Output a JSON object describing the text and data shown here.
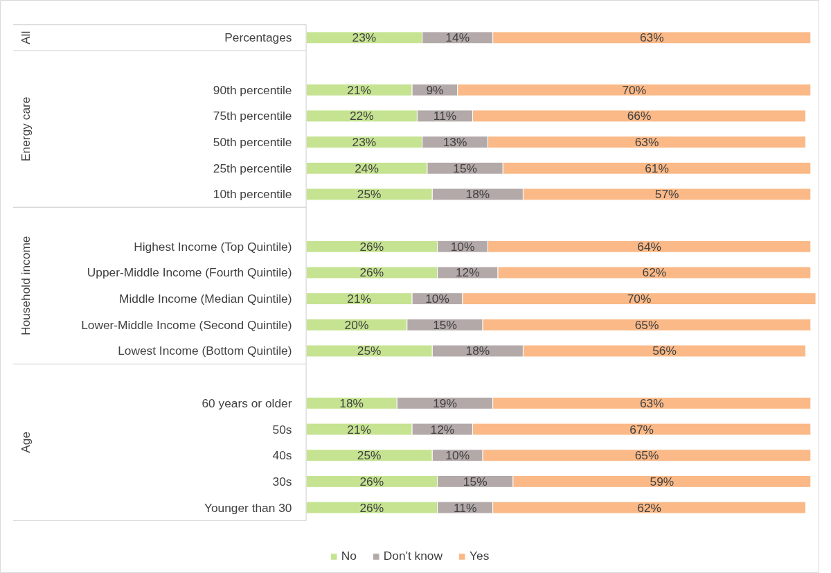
{
  "chart_data": {
    "type": "bar",
    "orientation": "horizontal",
    "stacked": true,
    "legend": "bottom",
    "categories": [
      "Percentages",
      null,
      "90th percentile",
      "75th percentile",
      "50th percentile",
      "25th percentile",
      "10th percentile",
      null,
      "Highest Income (Top Quintile)",
      "Upper-Middle Income (Fourth Quintile)",
      "Middle Income (Median Quintile)",
      "Lower-Middle Income (Second Quintile)",
      "Lowest Income (Bottom Quintile)",
      null,
      "60 years or older",
      "50s",
      "40s",
      "30s",
      "Younger than 30"
    ],
    "annotations": [
      "All",
      "Energy care",
      "Household income",
      "Age"
    ],
    "series": [
      {
        "name": "No",
        "color": "#c5e391",
        "values": [
          23,
          null,
          21,
          22,
          23,
          24,
          25,
          null,
          26,
          26,
          21,
          20,
          25,
          null,
          18,
          21,
          25,
          26,
          26
        ],
        "value_labels": [
          "23%",
          null,
          "21%",
          "22%",
          "23%",
          "24%",
          "25%",
          null,
          "26%",
          "26%",
          "21%",
          "20%",
          "25%",
          null,
          "18%",
          "21%",
          "25%",
          "26%",
          "26%"
        ]
      },
      {
        "name": "Don't know",
        "color": "#b3a9a9",
        "values": [
          14,
          null,
          9,
          11,
          13,
          15,
          18,
          null,
          10,
          12,
          10,
          15,
          18,
          null,
          19,
          12,
          10,
          15,
          11
        ],
        "value_labels": [
          "14%",
          null,
          "9%",
          "11%",
          "13%",
          "15%",
          "18%",
          null,
          "10%",
          "12%",
          "10%",
          "15%",
          "18%",
          null,
          "19%",
          "12%",
          "10%",
          "15%",
          "11%"
        ]
      },
      {
        "name": "Yes",
        "color": "#fab987",
        "values": [
          63,
          null,
          70,
          66,
          63,
          61,
          57,
          null,
          64,
          62,
          70,
          65,
          56,
          null,
          63,
          67,
          65,
          59,
          62
        ],
        "value_labels": [
          "63%",
          null,
          "70%",
          "66%",
          "63%",
          "61%",
          "57%",
          null,
          "64%",
          "62%",
          "70%",
          "65%",
          "56%",
          null,
          "63%",
          "67%",
          "65%",
          "59%",
          "62%"
        ]
      }
    ]
  }
}
